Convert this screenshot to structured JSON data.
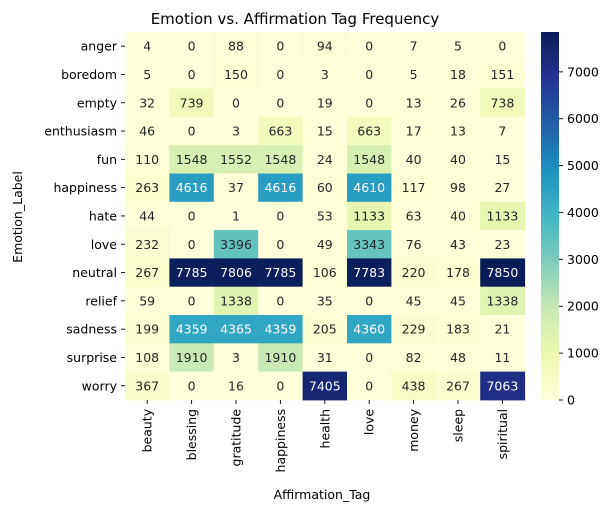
{
  "chart_data": {
    "type": "heatmap",
    "title": "Emotion vs. Affirmation Tag Frequency",
    "xlabel": "Affirmation_Tag",
    "ylabel": "Emotion_Label",
    "x_categories": [
      "beauty",
      "blessing",
      "gratitude",
      "happiness",
      "health",
      "love",
      "money",
      "sleep",
      "spiritual"
    ],
    "y_categories": [
      "anger",
      "boredom",
      "empty",
      "enthusiasm",
      "fun",
      "happiness",
      "hate",
      "love",
      "neutral",
      "relief",
      "sadness",
      "surprise",
      "worry"
    ],
    "values": [
      [
        4,
        0,
        88,
        0,
        94,
        0,
        7,
        5,
        0
      ],
      [
        5,
        0,
        150,
        0,
        3,
        0,
        5,
        18,
        151
      ],
      [
        32,
        739,
        0,
        0,
        19,
        0,
        13,
        26,
        738
      ],
      [
        46,
        0,
        3,
        663,
        15,
        663,
        17,
        13,
        7
      ],
      [
        110,
        1548,
        1552,
        1548,
        24,
        1548,
        40,
        40,
        15
      ],
      [
        263,
        4616,
        37,
        4616,
        60,
        4610,
        117,
        98,
        27
      ],
      [
        44,
        0,
        1,
        0,
        53,
        1133,
        63,
        40,
        1133
      ],
      [
        232,
        0,
        3396,
        0,
        49,
        3343,
        76,
        43,
        23
      ],
      [
        267,
        7785,
        7806,
        7785,
        106,
        7783,
        220,
        178,
        7850
      ],
      [
        59,
        0,
        1338,
        0,
        35,
        0,
        45,
        45,
        1338
      ],
      [
        199,
        4359,
        4365,
        4359,
        205,
        4360,
        229,
        183,
        21
      ],
      [
        108,
        1910,
        3,
        1910,
        31,
        0,
        82,
        48,
        11
      ],
      [
        367,
        0,
        16,
        0,
        7405,
        0,
        438,
        267,
        7063
      ]
    ],
    "colorbar": {
      "colormap": "YlGnBu",
      "range": [
        0,
        7850
      ],
      "ticks": [
        0,
        1000,
        2000,
        3000,
        4000,
        5000,
        6000,
        7000
      ]
    }
  }
}
